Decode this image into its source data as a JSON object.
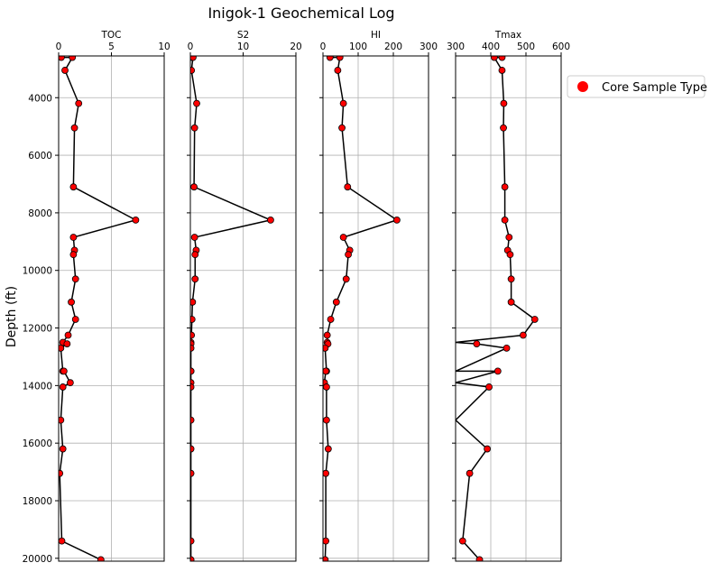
{
  "chart_data": {
    "type": "line",
    "title": "Inigok-1 Geochemical Log",
    "ylabel": "Depth (ft)",
    "y_inverted": true,
    "ylim": [
      20100,
      2550
    ],
    "yticks": [
      4000,
      6000,
      8000,
      10000,
      12000,
      14000,
      16000,
      18000,
      20000
    ],
    "grid": true,
    "legend": {
      "position": "right",
      "entries": [
        {
          "label": "Core Sample Type",
          "marker": "circle",
          "color": "#ff0000"
        }
      ]
    },
    "depth": [
      2600,
      2600,
      3050,
      4200,
      5050,
      7100,
      8250,
      8850,
      9300,
      9450,
      10300,
      11100,
      11700,
      12250,
      12500,
      12550,
      12700,
      13500,
      13500,
      13900,
      14050,
      15200,
      16200,
      17050,
      19400,
      20050
    ],
    "panels": [
      {
        "name": "TOC",
        "xlabel": "TOC",
        "xlim": [
          0,
          10
        ],
        "xticks": [
          0,
          5,
          10
        ],
        "values": [
          0.25,
          1.3,
          0.6,
          1.9,
          1.5,
          1.4,
          7.3,
          1.4,
          1.5,
          1.4,
          1.6,
          1.2,
          1.6,
          0.9,
          0.4,
          0.8,
          0.2,
          0.4,
          0.5,
          1.1,
          0.4,
          0.2,
          0.4,
          0.1,
          0.3,
          4.0
        ]
      },
      {
        "name": "S2",
        "xlabel": "S2",
        "xlim": [
          0,
          20
        ],
        "xticks": [
          0,
          10,
          20
        ],
        "values": [
          0.3,
          0.5,
          0.2,
          1.2,
          0.8,
          0.7,
          15.2,
          0.8,
          1.1,
          0.9,
          0.9,
          0.4,
          0.3,
          0.2,
          0.1,
          0.1,
          0.1,
          0.1,
          0.1,
          0.1,
          0.1,
          0.1,
          0.1,
          0.1,
          0.1,
          0.1
        ]
      },
      {
        "name": "HI",
        "xlabel": "HI",
        "xlim": [
          0,
          300
        ],
        "xticks": [
          0,
          100,
          200,
          300
        ],
        "values": [
          20,
          48,
          42,
          58,
          54,
          70,
          210,
          58,
          76,
          72,
          66,
          38,
          22,
          12,
          12,
          14,
          6,
          10,
          8,
          4,
          10,
          10,
          15,
          8,
          8,
          6
        ]
      },
      {
        "name": "Tmax",
        "xlabel": "Tmax",
        "xlim": [
          300,
          600
        ],
        "xticks": [
          300,
          400,
          500,
          600
        ],
        "values": [
          432,
          410,
          432,
          437,
          436,
          440,
          440,
          452,
          448,
          455,
          458,
          458,
          525,
          492,
          300,
          360,
          445,
          300,
          420,
          300,
          395,
          300,
          390,
          340,
          320,
          368
        ]
      }
    ]
  }
}
